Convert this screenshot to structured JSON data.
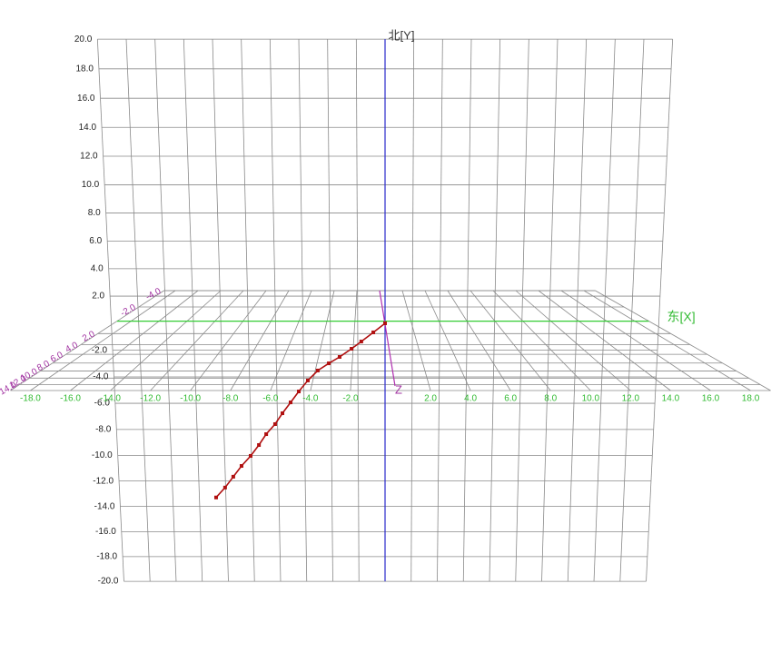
{
  "chart_data": {
    "type": "trajectory3d",
    "y_axis_label": "北[Y]",
    "x_axis_label": "东[X]",
    "z_axis_label": "Z",
    "xlim": [
      -10,
      10
    ],
    "ylim": [
      -20,
      20
    ],
    "yticks": [
      {
        "value": 20,
        "label": "20.0"
      },
      {
        "value": 18,
        "label": "18.0"
      },
      {
        "value": 16,
        "label": "16.0"
      },
      {
        "value": 14,
        "label": "14.0"
      },
      {
        "value": 12,
        "label": "12.0"
      },
      {
        "value": 10,
        "label": "10.0"
      },
      {
        "value": 8,
        "label": "8.0"
      },
      {
        "value": 6,
        "label": "6.0"
      },
      {
        "value": 4,
        "label": "4.0"
      },
      {
        "value": 2,
        "label": "2.0"
      },
      {
        "value": -2,
        "label": "-2.0"
      },
      {
        "value": -4,
        "label": "-4.0"
      },
      {
        "value": -6,
        "label": "-6.0"
      },
      {
        "value": -8,
        "label": "-8.0"
      },
      {
        "value": -10,
        "label": "-10.0"
      },
      {
        "value": -12,
        "label": "-12.0"
      },
      {
        "value": -14,
        "label": "-14.0"
      },
      {
        "value": -16,
        "label": "-16.0"
      },
      {
        "value": -18,
        "label": "-18.0"
      },
      {
        "value": -20,
        "label": "-20.0"
      }
    ],
    "floor_xlim": [
      -19,
      19
    ],
    "floor_xticks": [
      {
        "value": -18,
        "label": "-18.0"
      },
      {
        "value": -16,
        "label": "-16.0"
      },
      {
        "value": -14,
        "label": "-14.0"
      },
      {
        "value": -12,
        "label": "-12.0"
      },
      {
        "value": -10,
        "label": "-10.0"
      },
      {
        "value": -8,
        "label": "-8.0"
      },
      {
        "value": -6,
        "label": "-6.0"
      },
      {
        "value": -4,
        "label": "-4.0"
      },
      {
        "value": -2,
        "label": "-2.0"
      },
      {
        "value": 2,
        "label": "2.0"
      },
      {
        "value": 4,
        "label": "4.0"
      },
      {
        "value": 6,
        "label": "6.0"
      },
      {
        "value": 8,
        "label": "8.0"
      },
      {
        "value": 10,
        "label": "10.0"
      },
      {
        "value": 12,
        "label": "12.0"
      },
      {
        "value": 14,
        "label": "14.0"
      },
      {
        "value": 16,
        "label": "16.0"
      },
      {
        "value": 18,
        "label": "18.0"
      }
    ],
    "zlim": [
      -4,
      16
    ],
    "zticks": [
      {
        "value": -4,
        "label": "-4.0"
      },
      {
        "value": -2,
        "label": "-2.0"
      },
      {
        "value": 2,
        "label": "2.0"
      },
      {
        "value": 4,
        "label": "4.0"
      },
      {
        "value": 6,
        "label": "6.0"
      },
      {
        "value": 8,
        "label": "8.0"
      },
      {
        "value": 10,
        "label": "10.0"
      },
      {
        "value": 12,
        "label": "12.0"
      },
      {
        "value": 14,
        "label": "14.0"
      }
    ],
    "grid": true,
    "series": [
      {
        "color": "#b01010",
        "x": [
          0,
          -0.43,
          -0.87,
          -1.23,
          -1.67,
          -2.07,
          -2.48,
          -2.85,
          -3.19,
          -3.5,
          -3.81,
          -4.09,
          -4.43,
          -4.71,
          -5.03,
          -5.38,
          -5.7,
          -6.02,
          -6.37
        ],
        "y": [
          0,
          -0.67,
          -1.35,
          -1.89,
          -2.5,
          -2.98,
          -3.52,
          -4.27,
          -5.1,
          -5.93,
          -6.76,
          -7.59,
          -8.36,
          -9.2,
          -10.04,
          -10.82,
          -11.66,
          -12.51,
          -13.29
        ]
      }
    ]
  }
}
